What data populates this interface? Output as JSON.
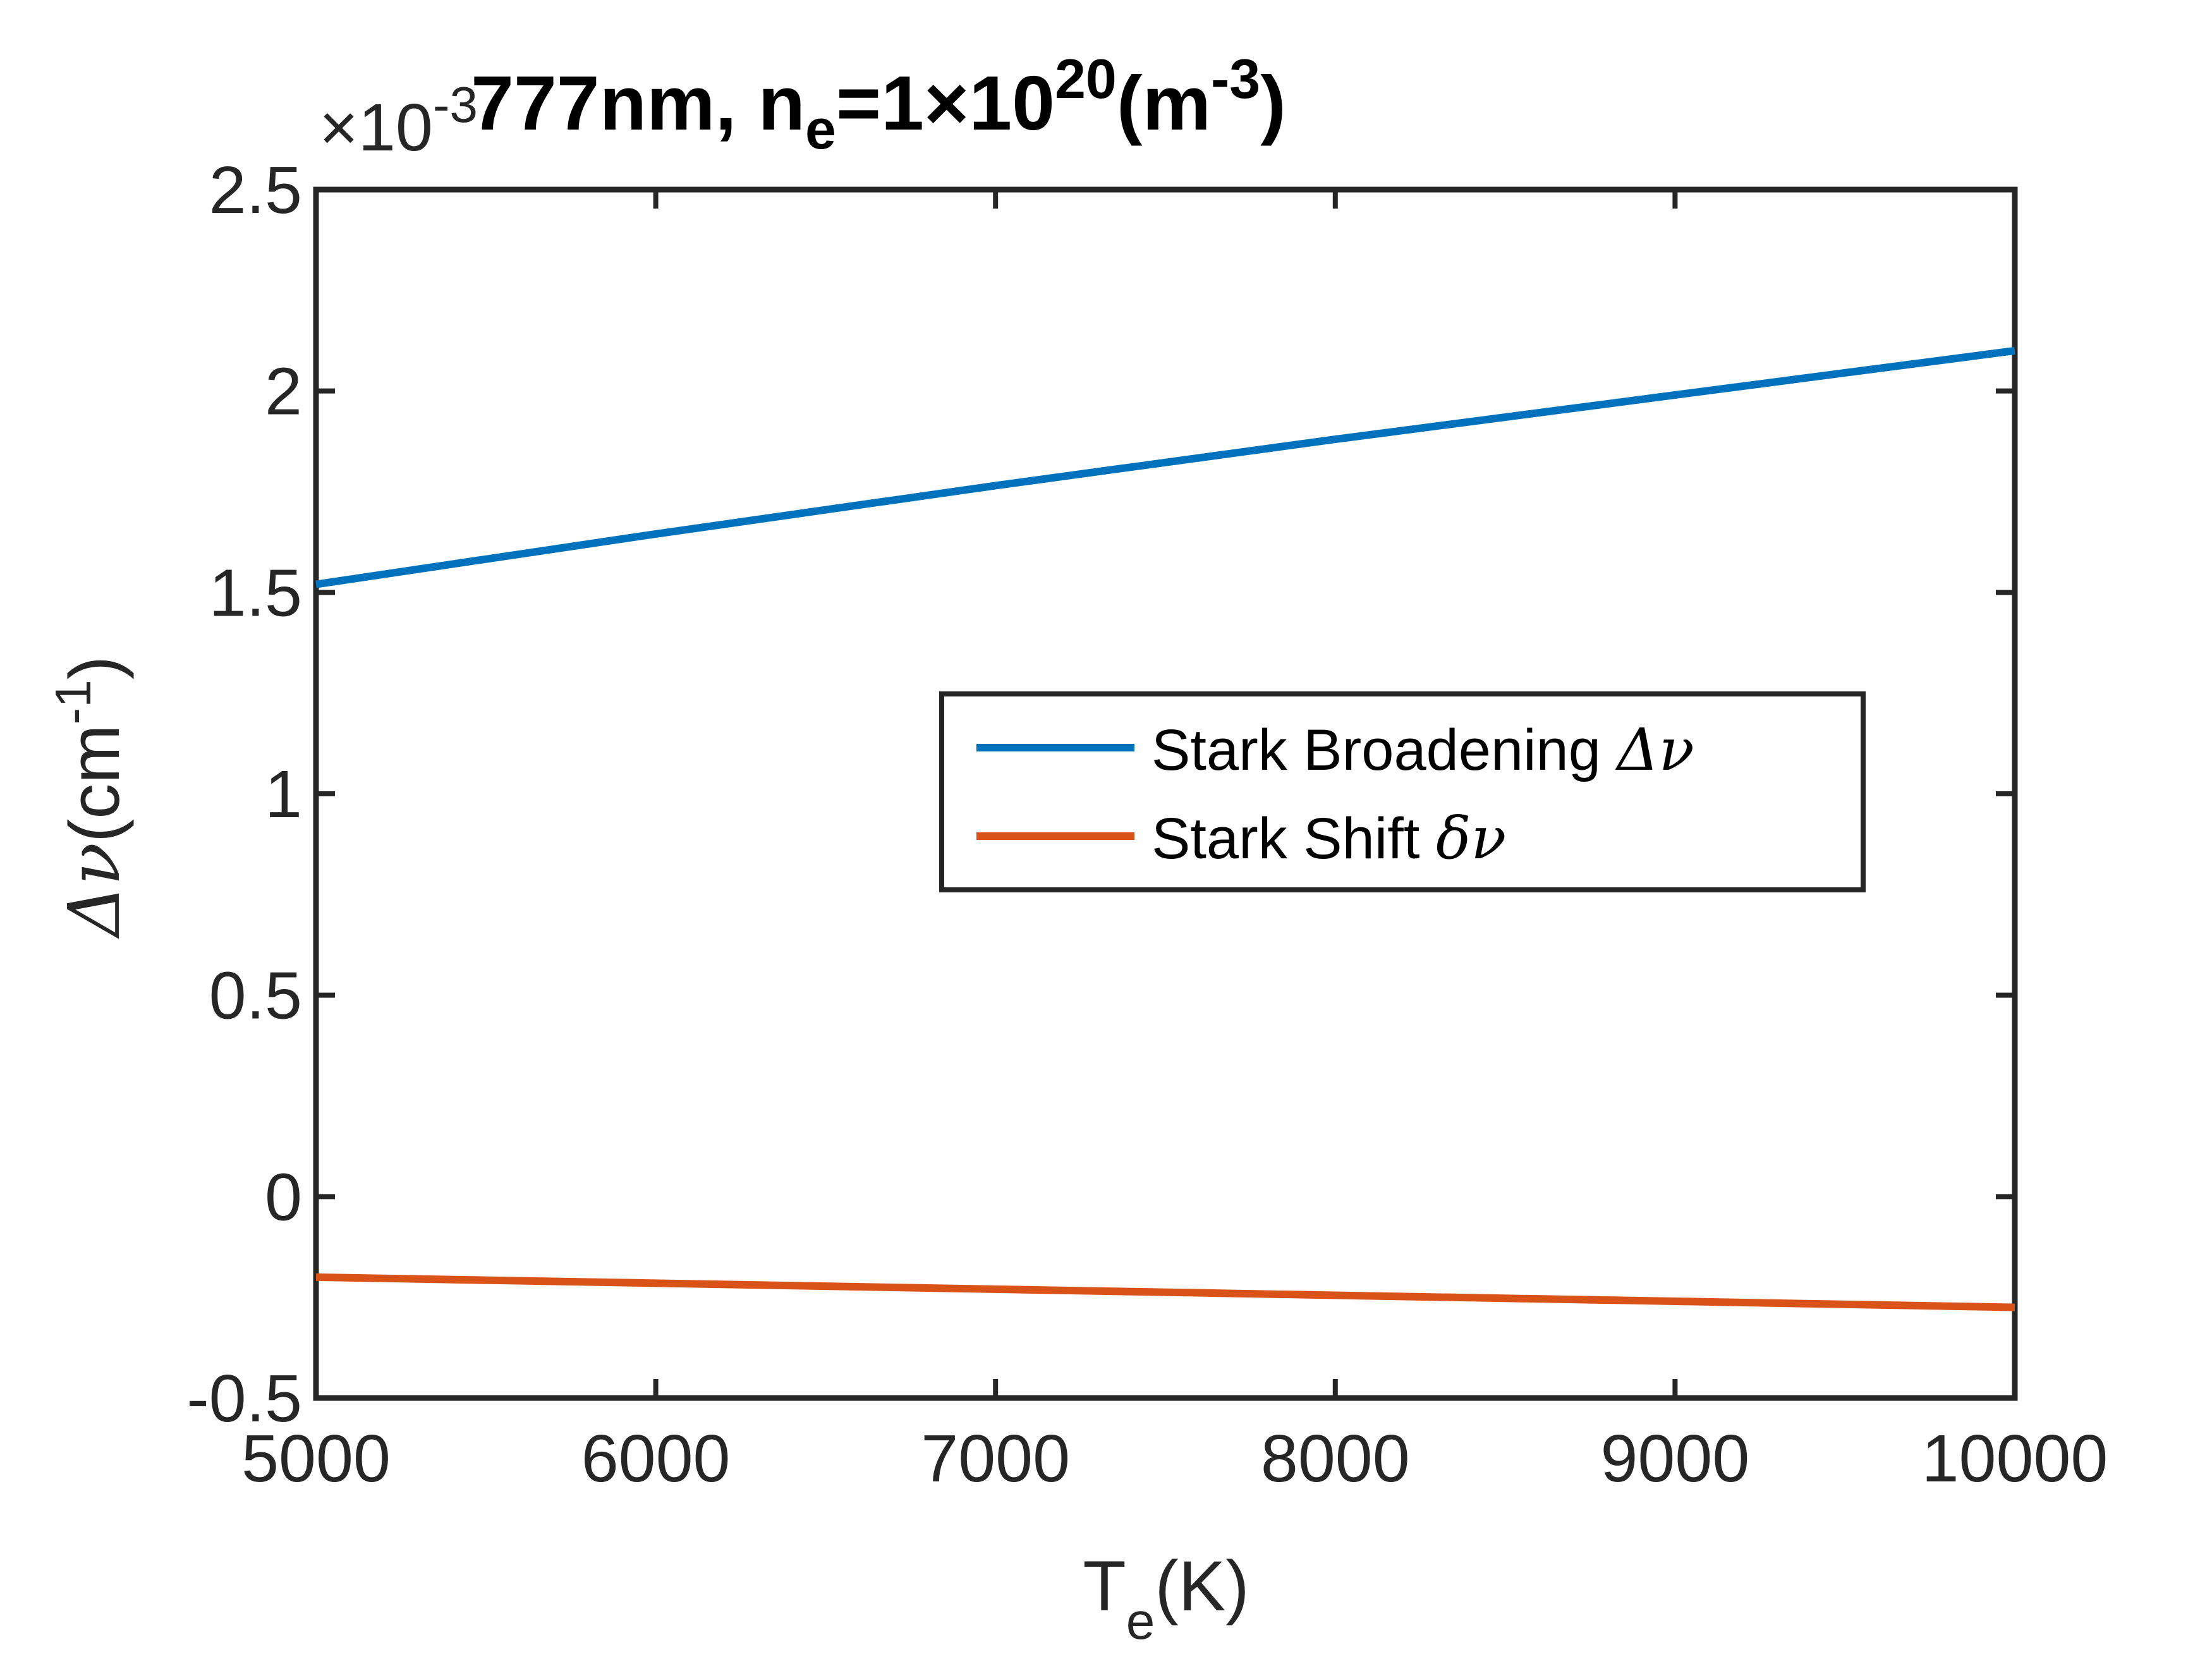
{
  "chart_data": {
    "type": "line",
    "title": {
      "main": "777nm, n",
      "sub": "e",
      "mid": "=1×10",
      "sup": "20",
      "unit_open": "(m",
      "unit_sup": "-3",
      "unit_close": ")"
    },
    "xlabel": {
      "base": "T",
      "sub": "e",
      "rest": "(K)"
    },
    "ylabel": {
      "greek": "Δν",
      "rest": "(cm",
      "sup": "-1",
      "close": ")"
    },
    "y_exponent": {
      "base": "×10",
      "sup": "-3"
    },
    "xlim": [
      5000,
      10000
    ],
    "ylim": [
      -0.5,
      2.5
    ],
    "xticks": [
      "5000",
      "6000",
      "7000",
      "8000",
      "9000",
      "10000"
    ],
    "xtick_values": [
      5000,
      6000,
      7000,
      8000,
      9000,
      10000
    ],
    "yticks": [
      "-0.5",
      "0",
      "0.5",
      "1",
      "1.5",
      "2",
      "2.5"
    ],
    "ytick_values": [
      -0.5,
      0,
      0.5,
      1,
      1.5,
      2,
      2.5
    ],
    "legend_position": "center-right",
    "series": [
      {
        "name": "Stark Broadening ",
        "symbol": "Δν",
        "color": "#0072BD",
        "x": [
          5000,
          6000,
          7000,
          8000,
          9000,
          10000
        ],
        "y": [
          1.52,
          1.645,
          1.765,
          1.88,
          1.99,
          2.1
        ]
      },
      {
        "name": "Stark Shift ",
        "symbol": "δν",
        "color": "#D95319",
        "x": [
          5000,
          6000,
          7000,
          8000,
          9000,
          10000
        ],
        "y": [
          -0.2,
          -0.215,
          -0.23,
          -0.245,
          -0.26,
          -0.275
        ]
      }
    ]
  }
}
